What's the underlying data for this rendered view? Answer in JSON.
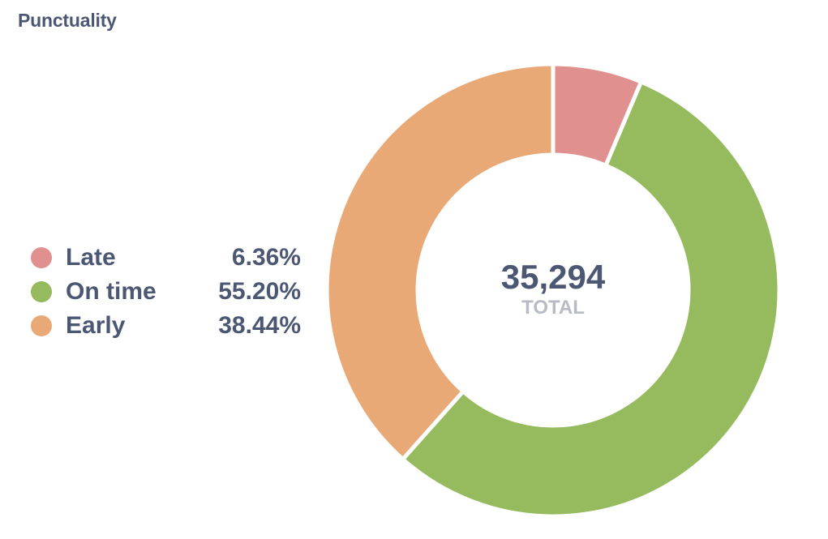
{
  "title": "Punctuality",
  "legend": [
    {
      "label": "Late",
      "value": "6.36%",
      "color": "#E0908F"
    },
    {
      "label": "On time",
      "value": "55.20%",
      "color": "#95BB5E"
    },
    {
      "label": "Early",
      "value": "38.44%",
      "color": "#E8A977"
    }
  ],
  "center": {
    "value": "35,294",
    "label": "TOTAL"
  },
  "chart_data": {
    "type": "pie",
    "subtype": "donut",
    "title": "Punctuality",
    "categories": [
      "Late",
      "On time",
      "Early"
    ],
    "values": [
      6.36,
      55.2,
      38.44
    ],
    "unit": "%",
    "colors": [
      "#E0908F",
      "#95BB5E",
      "#E8A977"
    ],
    "total": 35294,
    "total_label": "TOTAL",
    "legend_position": "left"
  }
}
